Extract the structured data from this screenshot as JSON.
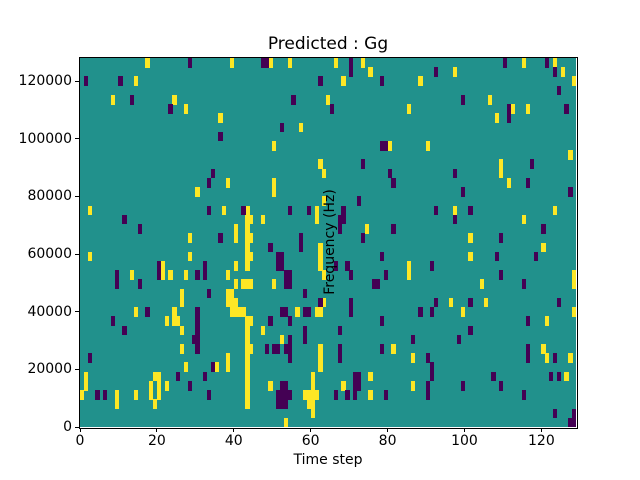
{
  "title": "Predicted : Gg",
  "chart_data": {
    "type": "heatmap",
    "title": "Predicted : Gg",
    "xlabel": "Time step",
    "ylabel": "Frequency (Hz)",
    "x_ticks": [
      0,
      20,
      40,
      60,
      80,
      100,
      120
    ],
    "y_ticks": [
      0,
      20000,
      40000,
      60000,
      80000,
      100000,
      120000
    ],
    "x_range": [
      0,
      129
    ],
    "y_range": [
      0,
      128000
    ],
    "grid_cols": 129,
    "grid_rows": 40,
    "row_order": "row 0 = top (highest frequency band)",
    "grid": "off",
    "legend": "none",
    "colors": {
      "mid_value_background": "#21918c",
      "high_value": "#fde725",
      "low_value": "#440154",
      "axes": "#000000",
      "figure_background": "#ffffff"
    },
    "cells_yellow": [
      [
        17,
        0
      ],
      [
        39,
        0
      ],
      [
        49,
        0
      ],
      [
        54,
        0
      ],
      [
        66,
        0
      ],
      [
        73,
        0
      ],
      [
        115,
        0
      ],
      [
        123,
        0
      ],
      [
        75,
        1
      ],
      [
        97,
        1
      ],
      [
        125,
        1
      ],
      [
        14,
        2
      ],
      [
        68,
        2
      ],
      [
        88,
        2
      ],
      [
        128,
        2
      ],
      [
        8,
        4
      ],
      [
        24,
        4
      ],
      [
        64,
        4
      ],
      [
        106,
        4
      ],
      [
        27,
        5
      ],
      [
        85,
        5
      ],
      [
        112,
        5
      ],
      [
        116,
        5
      ],
      [
        36,
        6
      ],
      [
        108,
        6
      ],
      [
        57,
        7
      ],
      [
        50,
        9
      ],
      [
        80,
        9
      ],
      [
        90,
        9
      ],
      [
        127,
        10
      ],
      [
        62,
        11
      ],
      [
        109,
        11
      ],
      [
        63,
        12
      ],
      [
        109,
        12
      ],
      [
        38,
        13
      ],
      [
        50,
        13
      ],
      [
        111,
        13
      ],
      [
        30,
        14
      ],
      [
        50,
        14
      ],
      [
        63,
        15
      ],
      [
        2,
        16
      ],
      [
        37,
        16
      ],
      [
        43,
        16
      ],
      [
        61,
        16
      ],
      [
        97,
        16
      ],
      [
        123,
        16
      ],
      [
        43,
        17
      ],
      [
        44,
        17
      ],
      [
        47,
        17
      ],
      [
        61,
        17
      ],
      [
        115,
        17
      ],
      [
        40,
        18
      ],
      [
        43,
        18
      ],
      [
        74,
        18
      ],
      [
        28,
        19
      ],
      [
        40,
        19
      ],
      [
        43,
        19
      ],
      [
        44,
        19
      ],
      [
        101,
        19
      ],
      [
        43,
        20
      ],
      [
        62,
        20
      ],
      [
        120,
        20
      ],
      [
        2,
        21
      ],
      [
        28,
        21
      ],
      [
        43,
        21
      ],
      [
        44,
        21
      ],
      [
        62,
        21
      ],
      [
        101,
        21
      ],
      [
        21,
        22
      ],
      [
        40,
        22
      ],
      [
        43,
        22
      ],
      [
        62,
        22
      ],
      [
        85,
        22
      ],
      [
        13,
        23
      ],
      [
        21,
        23
      ],
      [
        23,
        23
      ],
      [
        27,
        23
      ],
      [
        38,
        23
      ],
      [
        63,
        23
      ],
      [
        85,
        23
      ],
      [
        128,
        23
      ],
      [
        40,
        24
      ],
      [
        42,
        24
      ],
      [
        43,
        24
      ],
      [
        44,
        24
      ],
      [
        50,
        24
      ],
      [
        104,
        24
      ],
      [
        128,
        24
      ],
      [
        26,
        25
      ],
      [
        38,
        25
      ],
      [
        39,
        25
      ],
      [
        26,
        26
      ],
      [
        38,
        26
      ],
      [
        39,
        26
      ],
      [
        40,
        26
      ],
      [
        63,
        26
      ],
      [
        96,
        26
      ],
      [
        105,
        26
      ],
      [
        14,
        27
      ],
      [
        24,
        27
      ],
      [
        39,
        27
      ],
      [
        40,
        27
      ],
      [
        41,
        27
      ],
      [
        42,
        27
      ],
      [
        56,
        27
      ],
      [
        61,
        27
      ],
      [
        62,
        27
      ],
      [
        99,
        27
      ],
      [
        128,
        27
      ],
      [
        22,
        28
      ],
      [
        24,
        28
      ],
      [
        25,
        28
      ],
      [
        43,
        28
      ],
      [
        44,
        28
      ],
      [
        121,
        28
      ],
      [
        26,
        29
      ],
      [
        43,
        29
      ],
      [
        47,
        29
      ],
      [
        43,
        30
      ],
      [
        52,
        30
      ],
      [
        26,
        31
      ],
      [
        43,
        31
      ],
      [
        44,
        31
      ],
      [
        62,
        31
      ],
      [
        81,
        31
      ],
      [
        120,
        31
      ],
      [
        38,
        32
      ],
      [
        43,
        32
      ],
      [
        62,
        32
      ],
      [
        86,
        32
      ],
      [
        121,
        32
      ],
      [
        127,
        32
      ],
      [
        27,
        33
      ],
      [
        35,
        33
      ],
      [
        38,
        33
      ],
      [
        43,
        33
      ],
      [
        62,
        33
      ],
      [
        1,
        34
      ],
      [
        19,
        34
      ],
      [
        20,
        34
      ],
      [
        43,
        34
      ],
      [
        60,
        34
      ],
      [
        75,
        34
      ],
      [
        126,
        34
      ],
      [
        1,
        35
      ],
      [
        18,
        35
      ],
      [
        20,
        35
      ],
      [
        22,
        35
      ],
      [
        43,
        35
      ],
      [
        49,
        35
      ],
      [
        60,
        35
      ],
      [
        68,
        35
      ],
      [
        86,
        35
      ],
      [
        0,
        36
      ],
      [
        9,
        36
      ],
      [
        14,
        36
      ],
      [
        18,
        36
      ],
      [
        20,
        36
      ],
      [
        43,
        36
      ],
      [
        58,
        36
      ],
      [
        59,
        36
      ],
      [
        60,
        36
      ],
      [
        61,
        36
      ],
      [
        75,
        36
      ],
      [
        9,
        37
      ],
      [
        19,
        37
      ],
      [
        43,
        37
      ],
      [
        59,
        37
      ],
      [
        60,
        37
      ],
      [
        60,
        38
      ],
      [
        53,
        39
      ]
    ],
    "cells_purple": [
      [
        28,
        0
      ],
      [
        47,
        0
      ],
      [
        48,
        0
      ],
      [
        70,
        0
      ],
      [
        110,
        0
      ],
      [
        121,
        0
      ],
      [
        70,
        1
      ],
      [
        92,
        1
      ],
      [
        123,
        1
      ],
      [
        1,
        2
      ],
      [
        10,
        2
      ],
      [
        62,
        2
      ],
      [
        78,
        2
      ],
      [
        124,
        3
      ],
      [
        13,
        4
      ],
      [
        55,
        4
      ],
      [
        99,
        4
      ],
      [
        23,
        5
      ],
      [
        65,
        5
      ],
      [
        111,
        5
      ],
      [
        126,
        5
      ],
      [
        111,
        6
      ],
      [
        52,
        7
      ],
      [
        36,
        8
      ],
      [
        78,
        9
      ],
      [
        79,
        9
      ],
      [
        73,
        11
      ],
      [
        117,
        11
      ],
      [
        34,
        12
      ],
      [
        80,
        12
      ],
      [
        97,
        12
      ],
      [
        33,
        13
      ],
      [
        81,
        13
      ],
      [
        116,
        13
      ],
      [
        99,
        14
      ],
      [
        127,
        14
      ],
      [
        72,
        15
      ],
      [
        33,
        16
      ],
      [
        42,
        16
      ],
      [
        54,
        16
      ],
      [
        59,
        16
      ],
      [
        68,
        16
      ],
      [
        92,
        16
      ],
      [
        101,
        16
      ],
      [
        11,
        17
      ],
      [
        67,
        17
      ],
      [
        68,
        17
      ],
      [
        97,
        17
      ],
      [
        15,
        18
      ],
      [
        67,
        18
      ],
      [
        81,
        18
      ],
      [
        120,
        18
      ],
      [
        36,
        19
      ],
      [
        57,
        19
      ],
      [
        73,
        19
      ],
      [
        109,
        19
      ],
      [
        49,
        20
      ],
      [
        57,
        20
      ],
      [
        51,
        21
      ],
      [
        52,
        21
      ],
      [
        78,
        21
      ],
      [
        108,
        21
      ],
      [
        118,
        21
      ],
      [
        20,
        22
      ],
      [
        32,
        22
      ],
      [
        51,
        22
      ],
      [
        52,
        22
      ],
      [
        66,
        22
      ],
      [
        69,
        22
      ],
      [
        91,
        22
      ],
      [
        9,
        23
      ],
      [
        20,
        23
      ],
      [
        30,
        23
      ],
      [
        32,
        23
      ],
      [
        53,
        23
      ],
      [
        54,
        23
      ],
      [
        70,
        23
      ],
      [
        79,
        23
      ],
      [
        109,
        23
      ],
      [
        9,
        24
      ],
      [
        15,
        24
      ],
      [
        53,
        24
      ],
      [
        54,
        24
      ],
      [
        76,
        24
      ],
      [
        77,
        24
      ],
      [
        115,
        24
      ],
      [
        33,
        25
      ],
      [
        58,
        25
      ],
      [
        62,
        26
      ],
      [
        70,
        26
      ],
      [
        92,
        26
      ],
      [
        101,
        26
      ],
      [
        124,
        26
      ],
      [
        17,
        27
      ],
      [
        30,
        27
      ],
      [
        52,
        27
      ],
      [
        53,
        27
      ],
      [
        58,
        27
      ],
      [
        59,
        27
      ],
      [
        70,
        27
      ],
      [
        88,
        27
      ],
      [
        91,
        27
      ],
      [
        8,
        28
      ],
      [
        30,
        28
      ],
      [
        49,
        28
      ],
      [
        54,
        28
      ],
      [
        78,
        28
      ],
      [
        116,
        28
      ],
      [
        11,
        29
      ],
      [
        30,
        29
      ],
      [
        58,
        29
      ],
      [
        67,
        29
      ],
      [
        101,
        29
      ],
      [
        29,
        30
      ],
      [
        30,
        30
      ],
      [
        54,
        30
      ],
      [
        58,
        30
      ],
      [
        86,
        30
      ],
      [
        98,
        30
      ],
      [
        30,
        31
      ],
      [
        48,
        31
      ],
      [
        50,
        31
      ],
      [
        51,
        31
      ],
      [
        53,
        31
      ],
      [
        54,
        31
      ],
      [
        67,
        31
      ],
      [
        78,
        31
      ],
      [
        116,
        31
      ],
      [
        2,
        32
      ],
      [
        54,
        32
      ],
      [
        67,
        32
      ],
      [
        90,
        32
      ],
      [
        116,
        32
      ],
      [
        123,
        32
      ],
      [
        34,
        33
      ],
      [
        91,
        33
      ],
      [
        25,
        34
      ],
      [
        32,
        34
      ],
      [
        71,
        34
      ],
      [
        72,
        34
      ],
      [
        91,
        34
      ],
      [
        107,
        34
      ],
      [
        122,
        34
      ],
      [
        124,
        34
      ],
      [
        28,
        35
      ],
      [
        52,
        35
      ],
      [
        53,
        35
      ],
      [
        71,
        35
      ],
      [
        72,
        35
      ],
      [
        90,
        35
      ],
      [
        99,
        35
      ],
      [
        109,
        35
      ],
      [
        4,
        36
      ],
      [
        6,
        36
      ],
      [
        33,
        36
      ],
      [
        51,
        36
      ],
      [
        52,
        36
      ],
      [
        53,
        36
      ],
      [
        54,
        36
      ],
      [
        66,
        36
      ],
      [
        69,
        36
      ],
      [
        71,
        36
      ],
      [
        79,
        36
      ],
      [
        90,
        36
      ],
      [
        115,
        36
      ],
      [
        51,
        37
      ],
      [
        52,
        37
      ],
      [
        53,
        37
      ],
      [
        123,
        38
      ],
      [
        128,
        38
      ],
      [
        127,
        39
      ],
      [
        128,
        39
      ]
    ]
  }
}
